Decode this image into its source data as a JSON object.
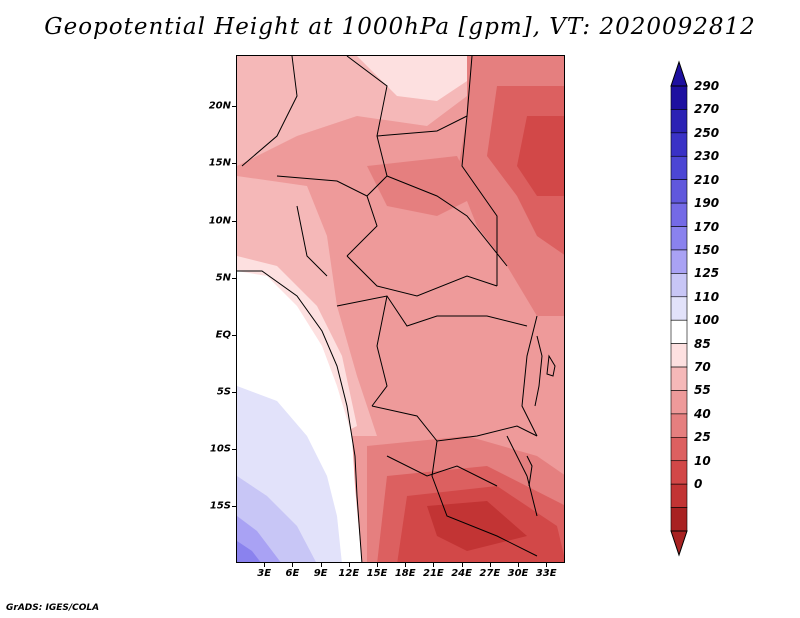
{
  "title": "Geopotential Height at 1000hPa [gpm], VT: 2020092812",
  "credit": "GrADS: IGES/COLA",
  "map": {
    "latitude_labels": [
      "20N",
      "15N",
      "10N",
      "5N",
      "EQ",
      "5S",
      "10S",
      "15S"
    ],
    "longitude_labels": [
      "3E",
      "6E",
      "9E",
      "12E",
      "15E",
      "18E",
      "21E",
      "24E",
      "27E",
      "30E",
      "33E"
    ],
    "lat_range": [
      -20,
      24.5
    ],
    "lon_range": [
      0,
      35
    ]
  },
  "colorbar": {
    "levels": [
      "290",
      "270",
      "250",
      "230",
      "210",
      "190",
      "170",
      "150",
      "125",
      "110",
      "100",
      "85",
      "70",
      "55",
      "40",
      "25",
      "10",
      "0"
    ],
    "colors": [
      "#1e10a0",
      "#2b22b4",
      "#3a32c6",
      "#4c46d4",
      "#6058dc",
      "#746ae6",
      "#8a82ee",
      "#a9a2f4",
      "#c8c6f6",
      "#e2e2fa",
      "#ffffff",
      "#fde0e0",
      "#f5b8b8",
      "#ee9a9a",
      "#e57f7f",
      "#dc6060",
      "#d24848",
      "#c23434",
      "#a82222"
    ]
  }
}
